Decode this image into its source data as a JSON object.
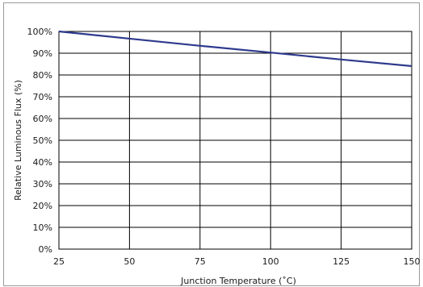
{
  "chart_data": {
    "type": "line",
    "xlabel": "Junction Temperature (˚C)",
    "ylabel": "Relative Luminous Flux (%)",
    "x_ticks": [
      "25",
      "50",
      "75",
      "100",
      "125",
      "150"
    ],
    "y_ticks": [
      "0%",
      "10%",
      "20%",
      "30%",
      "40%",
      "50%",
      "60%",
      "70%",
      "80%",
      "90%",
      "100%"
    ],
    "xlim": [
      25,
      150
    ],
    "ylim": [
      0,
      100
    ],
    "grid": true,
    "series": [
      {
        "color": "#2e3a8c",
        "x": [
          25,
          50,
          75,
          100,
          125,
          150
        ],
        "y": [
          100,
          96.7,
          93.4,
          90.3,
          87.1,
          84.1
        ]
      }
    ]
  }
}
